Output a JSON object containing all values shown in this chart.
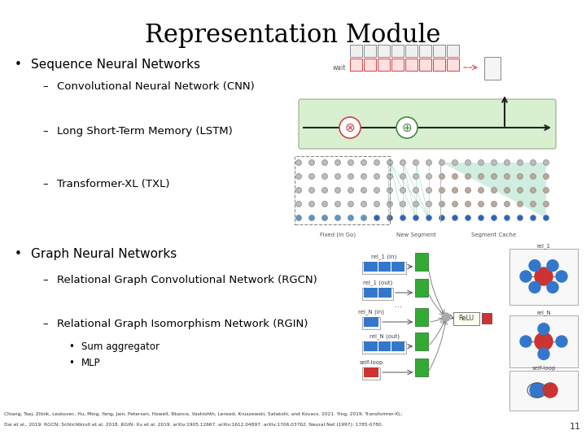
{
  "title": "Representation Module",
  "title_fontsize": 22,
  "title_font": "serif",
  "background_color": "#ffffff",
  "bullet1": "Sequence Neural Networks",
  "bullet1_sub1": "Convolutional Neural Network (CNN)",
  "bullet1_sub2": "Long Short-Term Memory (LSTM)",
  "bullet1_sub3": "Transformer-XL (TXL)",
  "bullet2": "Graph Neural Networks",
  "bullet2_sub1": "Relational Graph Convolutional Network (RGCN)",
  "bullet2_sub2": "Relational Graph Isomorphism Network (RGIN)",
  "bullet2_sub2_sub1": "Sum aggregator",
  "bullet2_sub2_sub2": "MLP",
  "footer_line1": "Chiang, Tsej, Zitnik, Leskovec, Hu, Ming, Yang, Jain, Petersen, Howell, Rkance, Vashishth, Lensed, Kruszewski, Satakshi, and Kovacs. 2021. Ying, 2019. Transformer-XL:",
  "footer_line2": "Dai et al., 2019. RGCN: Schlichtkrull et al. 2018. RGIN: Xu et al. 2019. arXiv:1905.12667. arXiv:1612.04897. arXiv:1706.03762. Neural Net (1997): 1785-0780.",
  "page_number": "11",
  "text_color": "#000000",
  "bullet_color": "#000000"
}
